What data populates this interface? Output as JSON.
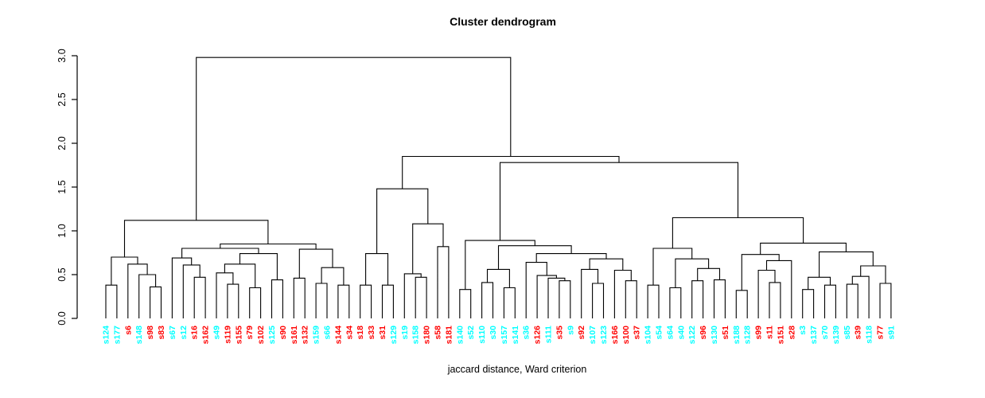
{
  "chart_data": {
    "type": "dendrogram",
    "title": "Cluster dendrogram",
    "xlabel": "jaccard distance, Ward criterion",
    "ylabel": "",
    "ylim": [
      0.0,
      3.0
    ],
    "yticks": [
      "0.0",
      "0.5",
      "1.0",
      "1.5",
      "2.0",
      "2.5",
      "3.0"
    ],
    "grid": false,
    "line_color": "#000000",
    "label_colors": {
      "cyan": "#00FFFF",
      "red": "#FF0000"
    },
    "leaves": [
      {
        "label": "s124",
        "color": "cyan"
      },
      {
        "label": "s177",
        "color": "cyan"
      },
      {
        "label": "s6",
        "color": "red"
      },
      {
        "label": "s148",
        "color": "cyan"
      },
      {
        "label": "s98",
        "color": "red"
      },
      {
        "label": "s83",
        "color": "red"
      },
      {
        "label": "s67",
        "color": "cyan"
      },
      {
        "label": "s12",
        "color": "cyan"
      },
      {
        "label": "s16",
        "color": "red"
      },
      {
        "label": "s162",
        "color": "red"
      },
      {
        "label": "s49",
        "color": "cyan"
      },
      {
        "label": "s119",
        "color": "red"
      },
      {
        "label": "s155",
        "color": "red"
      },
      {
        "label": "s79",
        "color": "red"
      },
      {
        "label": "s102",
        "color": "red"
      },
      {
        "label": "s125",
        "color": "cyan"
      },
      {
        "label": "s90",
        "color": "red"
      },
      {
        "label": "s161",
        "color": "red"
      },
      {
        "label": "s132",
        "color": "red"
      },
      {
        "label": "s159",
        "color": "cyan"
      },
      {
        "label": "s66",
        "color": "cyan"
      },
      {
        "label": "s144",
        "color": "red"
      },
      {
        "label": "s34",
        "color": "red"
      },
      {
        "label": "s18",
        "color": "red"
      },
      {
        "label": "s33",
        "color": "red"
      },
      {
        "label": "s31",
        "color": "red"
      },
      {
        "label": "s129",
        "color": "cyan"
      },
      {
        "label": "s19",
        "color": "cyan"
      },
      {
        "label": "s158",
        "color": "cyan"
      },
      {
        "label": "s180",
        "color": "red"
      },
      {
        "label": "s58",
        "color": "red"
      },
      {
        "label": "s181",
        "color": "red"
      },
      {
        "label": "s140",
        "color": "cyan"
      },
      {
        "label": "s52",
        "color": "cyan"
      },
      {
        "label": "s110",
        "color": "cyan"
      },
      {
        "label": "s30",
        "color": "cyan"
      },
      {
        "label": "s157",
        "color": "cyan"
      },
      {
        "label": "s141",
        "color": "cyan"
      },
      {
        "label": "s36",
        "color": "cyan"
      },
      {
        "label": "s126",
        "color": "red"
      },
      {
        "label": "s111",
        "color": "cyan"
      },
      {
        "label": "s35",
        "color": "red"
      },
      {
        "label": "s9",
        "color": "cyan"
      },
      {
        "label": "s92",
        "color": "red"
      },
      {
        "label": "s107",
        "color": "cyan"
      },
      {
        "label": "s123",
        "color": "cyan"
      },
      {
        "label": "s166",
        "color": "red"
      },
      {
        "label": "s100",
        "color": "red"
      },
      {
        "label": "s37",
        "color": "red"
      },
      {
        "label": "s104",
        "color": "cyan"
      },
      {
        "label": "s54",
        "color": "cyan"
      },
      {
        "label": "s64",
        "color": "cyan"
      },
      {
        "label": "s40",
        "color": "cyan"
      },
      {
        "label": "s122",
        "color": "cyan"
      },
      {
        "label": "s96",
        "color": "red"
      },
      {
        "label": "s130",
        "color": "cyan"
      },
      {
        "label": "s51",
        "color": "red"
      },
      {
        "label": "s188",
        "color": "cyan"
      },
      {
        "label": "s128",
        "color": "cyan"
      },
      {
        "label": "s99",
        "color": "red"
      },
      {
        "label": "s11",
        "color": "red"
      },
      {
        "label": "s151",
        "color": "red"
      },
      {
        "label": "s28",
        "color": "red"
      },
      {
        "label": "s3",
        "color": "cyan"
      },
      {
        "label": "s137",
        "color": "cyan"
      },
      {
        "label": "s70",
        "color": "cyan"
      },
      {
        "label": "s139",
        "color": "cyan"
      },
      {
        "label": "s85",
        "color": "cyan"
      },
      {
        "label": "s39",
        "color": "red"
      },
      {
        "label": "s118",
        "color": "cyan"
      },
      {
        "label": "s77",
        "color": "red"
      },
      {
        "label": "s91",
        "color": "cyan"
      }
    ],
    "tree": [
      2.98,
      [
        1.12,
        [
          0.7,
          [
            0.38,
            0,
            1
          ],
          [
            0.62,
            2,
            [
              0.5,
              3,
              [
                0.36,
                4,
                5
              ]
            ]
          ]
        ],
        [
          0.85,
          [
            0.8,
            [
              0.69,
              6,
              [
                0.61,
                7,
                [
                  0.47,
                  8,
                  9
                ]
              ]
            ],
            [
              0.74,
              [
                0.62,
                [
                  0.52,
                  10,
                  [
                    0.39,
                    11,
                    12
                  ]
                ],
                [
                  0.35,
                  13,
                  14
                ]
              ],
              [
                0.44,
                15,
                16
              ]
            ]
          ],
          [
            0.79,
            [
              0.46,
              17,
              18
            ],
            [
              0.58,
              [
                0.4,
                19,
                20
              ],
              [
                0.38,
                21,
                22
              ]
            ]
          ]
        ]
      ],
      [
        1.85,
        [
          1.48,
          [
            0.74,
            [
              0.38,
              23,
              24
            ],
            [
              0.38,
              25,
              26
            ]
          ],
          [
            1.08,
            [
              0.51,
              27,
              [
                0.47,
                28,
                29
              ]
            ],
            [
              0.82,
              30,
              31
            ]
          ]
        ],
        [
          1.78,
          [
            0.89,
            [
              0.33,
              32,
              33
            ],
            [
              0.83,
              [
                0.56,
                [
                  0.41,
                  34,
                  35
                ],
                [
                  0.35,
                  36,
                  37
                ]
              ],
              [
                0.74,
                [
                  0.64,
                  38,
                  [
                    0.49,
                    39,
                    [
                      0.46,
                      40,
                      [
                        0.43,
                        41,
                        42
                      ]
                    ]
                  ]
                ],
                [
                  0.68,
                  [
                    0.56,
                    43,
                    [
                      0.4,
                      44,
                      45
                    ]
                  ],
                  [
                    0.55,
                    46,
                    [
                      0.43,
                      47,
                      48
                    ]
                  ]
                ]
              ]
            ]
          ],
          [
            1.15,
            [
              0.8,
              [
                0.38,
                49,
                50
              ],
              [
                0.68,
                [
                  0.35,
                  51,
                  52
                ],
                [
                  0.57,
                  [
                    0.43,
                    53,
                    54
                  ],
                  [
                    0.44,
                    55,
                    56
                  ]
                ]
              ]
            ],
            [
              0.86,
              [
                0.73,
                [
                  0.32,
                  57,
                  58
                ],
                [
                  0.66,
                  [
                    0.55,
                    59,
                    [
                      0.41,
                      60,
                      61
                    ]
                  ],
                  62
                ]
              ],
              [
                0.76,
                [
                  0.47,
                  [
                    0.33,
                    63,
                    64
                  ],
                  [
                    0.38,
                    65,
                    66
                  ]
                ],
                [
                  0.6,
                  [
                    0.48,
                    [
                      0.39,
                      67,
                      68
                    ],
                    69
                  ],
                  [
                    0.4,
                    70,
                    71
                  ]
                ]
              ]
            ]
          ]
        ]
      ]
    ]
  }
}
